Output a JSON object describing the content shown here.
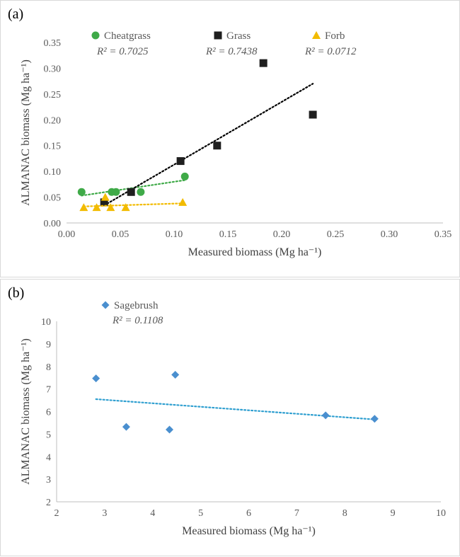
{
  "panels": [
    {
      "label": "(a)"
    },
    {
      "label": "(b)"
    }
  ],
  "chart_data": [
    {
      "type": "scatter",
      "xlabel": "Measured biomass (Mg ha⁻¹)",
      "ylabel": "ALMANAC biomass (Mg ha⁻¹)",
      "xlim": [
        0,
        0.35
      ],
      "ylim": [
        0,
        0.35
      ],
      "xticks": [
        "0.00",
        "0.05",
        "0.10",
        "0.15",
        "0.20",
        "0.25",
        "0.30",
        "0.35"
      ],
      "yticks": [
        "0.00",
        "0.05",
        "0.10",
        "0.15",
        "0.20",
        "0.25",
        "0.30",
        "0.35"
      ],
      "grid": false,
      "legend_position": "top",
      "series": [
        {
          "name": "Cheatgrass",
          "r2": "R² = 0.7025",
          "marker": "circle",
          "color": "#3faa48",
          "trend_color": "#3faa48",
          "points": [
            [
              0.014,
              0.06
            ],
            [
              0.042,
              0.06
            ],
            [
              0.046,
              0.06
            ],
            [
              0.069,
              0.06
            ],
            [
              0.11,
              0.09
            ]
          ],
          "trendline": [
            [
              0.014,
              0.053
            ],
            [
              0.11,
              0.083
            ]
          ]
        },
        {
          "name": "Grass",
          "r2": "R² = 0.7438",
          "marker": "square",
          "color": "#1f1f1f",
          "trend_color": "#000000",
          "points": [
            [
              0.035,
              0.04
            ],
            [
              0.06,
              0.06
            ],
            [
              0.106,
              0.12
            ],
            [
              0.14,
              0.15
            ],
            [
              0.183,
              0.31
            ],
            [
              0.229,
              0.21
            ]
          ],
          "trendline": [
            [
              0.035,
              0.034
            ],
            [
              0.229,
              0.27
            ]
          ]
        },
        {
          "name": "Forb",
          "r2": "R² = 0.0712",
          "marker": "triangle",
          "color": "#f2bb00",
          "trend_color": "#f2bb00",
          "points": [
            [
              0.016,
              0.03
            ],
            [
              0.028,
              0.03
            ],
            [
              0.036,
              0.05
            ],
            [
              0.041,
              0.03
            ],
            [
              0.055,
              0.03
            ],
            [
              0.108,
              0.04
            ]
          ],
          "trendline": [
            [
              0.016,
              0.032
            ],
            [
              0.108,
              0.038
            ]
          ]
        }
      ]
    },
    {
      "type": "scatter",
      "xlabel": "Measured biomass (Mg ha⁻¹)",
      "ylabel": "ALMANAC biomass (Mg ha⁻¹)",
      "xlim": [
        2,
        10
      ],
      "ylim": [
        2,
        10
      ],
      "xticks": [
        "2",
        "3",
        "4",
        "5",
        "6",
        "7",
        "8",
        "9",
        "10"
      ],
      "yticks": [
        "2",
        "3",
        "4",
        "5",
        "6",
        "7",
        "8",
        "9",
        "10"
      ],
      "grid": false,
      "legend_position": "top-left",
      "series": [
        {
          "name": "Sagebrush",
          "r2": "R² = 0.1108",
          "marker": "diamond",
          "color": "#4a8fcf",
          "trend_color": "#2f9fd0",
          "points": [
            [
              2.82,
              7.47
            ],
            [
              3.45,
              5.32
            ],
            [
              4.35,
              5.2
            ],
            [
              4.47,
              7.63
            ],
            [
              7.6,
              5.83
            ],
            [
              8.62,
              5.68
            ]
          ],
          "trendline": [
            [
              2.82,
              6.55
            ],
            [
              8.62,
              5.65
            ]
          ]
        }
      ]
    }
  ]
}
